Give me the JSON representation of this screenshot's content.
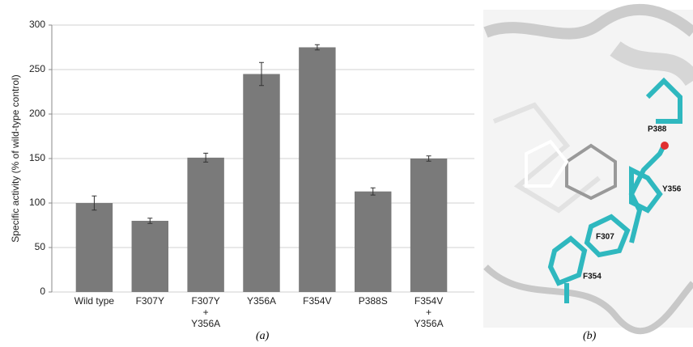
{
  "chart_data": {
    "type": "bar",
    "caption": "(a)",
    "ylabel": "Specific activity (% of wild-type control)",
    "categories": [
      "Wild type",
      "F307Y",
      "F307Y\n+\nY356A",
      "Y356A",
      "F354V",
      "P388S",
      "F354V\n+\nY356A"
    ],
    "values": [
      100,
      80,
      151,
      245,
      275,
      113,
      150
    ],
    "errors": [
      8,
      3,
      5,
      13,
      3,
      4,
      3
    ],
    "color": "#7a7a7a",
    "ylim": [
      0,
      300
    ],
    "yticks": [
      0,
      50,
      100,
      150,
      200,
      250,
      300
    ],
    "grid": true
  },
  "panel_b": {
    "caption": "(b)",
    "residue_labels": [
      "P388",
      "Y356",
      "F307",
      "F354"
    ]
  }
}
